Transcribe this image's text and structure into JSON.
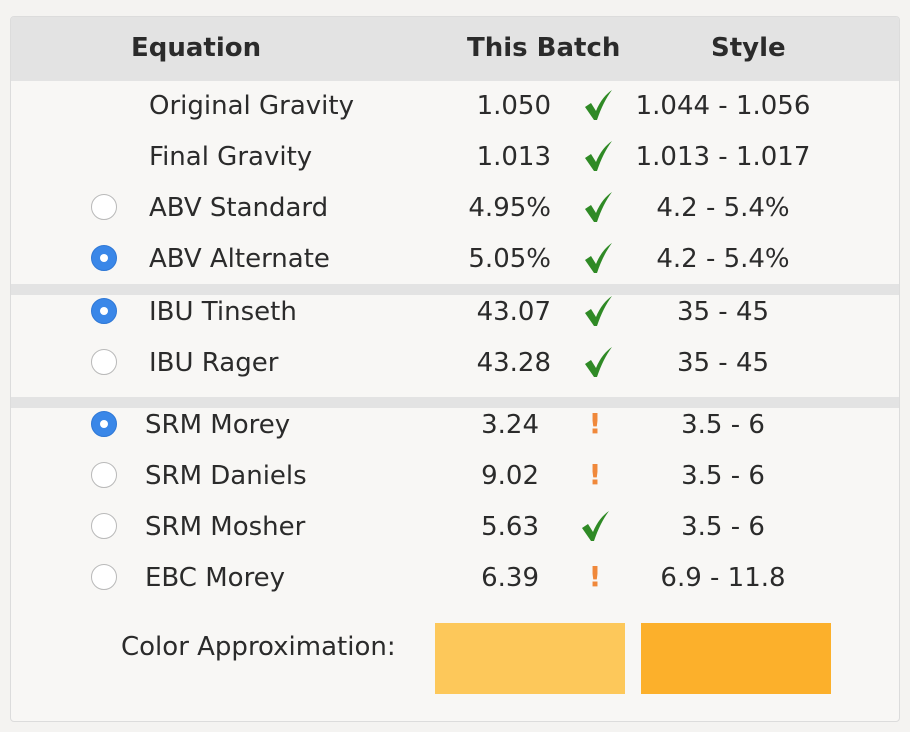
{
  "headers": {
    "equation": "Equation",
    "batch": "This Batch",
    "style": "Style"
  },
  "groups": [
    [
      {
        "radio": null,
        "name": "Original Gravity",
        "value": "1.050",
        "status": "ok",
        "range": "1.044 - 1.056"
      },
      {
        "radio": null,
        "name": "Final Gravity",
        "value": "1.013",
        "status": "ok",
        "range": "1.013 - 1.017"
      },
      {
        "radio": false,
        "name": "ABV Standard",
        "value": "4.95%",
        "status": "ok",
        "range": "4.2 - 5.4%"
      },
      {
        "radio": true,
        "name": "ABV Alternate",
        "value": "5.05%",
        "status": "ok",
        "range": "4.2 - 5.4%"
      }
    ],
    [
      {
        "radio": true,
        "name": "IBU Tinseth",
        "value": "43.07",
        "status": "ok",
        "range": "35 - 45"
      },
      {
        "radio": false,
        "name": "IBU Rager",
        "value": "43.28",
        "status": "ok",
        "range": "35 - 45"
      }
    ],
    [
      {
        "radio": true,
        "name": "SRM Morey",
        "value": "3.24",
        "status": "warn",
        "range": "3.5 - 6"
      },
      {
        "radio": false,
        "name": "SRM Daniels",
        "value": "9.02",
        "status": "warn",
        "range": "3.5 - 6"
      },
      {
        "radio": false,
        "name": "SRM Mosher",
        "value": "5.63",
        "status": "ok",
        "range": "3.5 - 6"
      },
      {
        "radio": false,
        "name": "EBC Morey",
        "value": "6.39",
        "status": "warn",
        "range": "6.9 - 11.8"
      }
    ]
  ],
  "color_approximation": {
    "label": "Color Approximation:",
    "batch_color": "#fdc85a",
    "style_color": "#fcb02b"
  },
  "colors": {
    "check": "#2f8a25",
    "warning": "#f0883a",
    "radio_selected": "#3a87e8"
  }
}
